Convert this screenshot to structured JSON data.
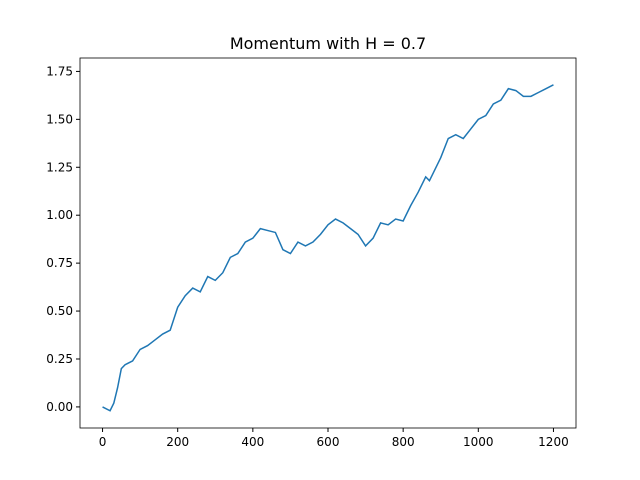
{
  "chart_data": {
    "type": "line",
    "title": "Momentum with H = 0.7",
    "x": [
      0,
      20,
      30,
      40,
      50,
      60,
      80,
      100,
      120,
      140,
      160,
      180,
      200,
      220,
      240,
      260,
      280,
      300,
      320,
      340,
      360,
      380,
      400,
      420,
      440,
      460,
      480,
      500,
      520,
      540,
      560,
      580,
      600,
      620,
      640,
      660,
      680,
      700,
      720,
      740,
      760,
      780,
      800,
      820,
      840,
      860,
      870,
      880,
      900,
      920,
      940,
      960,
      980,
      1000,
      1020,
      1040,
      1060,
      1080,
      1100,
      1120,
      1140,
      1160,
      1180,
      1200
    ],
    "series": [
      {
        "color": "#1f77b4",
        "values": [
          0.0,
          -0.02,
          0.02,
          0.1,
          0.2,
          0.22,
          0.24,
          0.3,
          0.32,
          0.35,
          0.38,
          0.4,
          0.52,
          0.58,
          0.62,
          0.6,
          0.68,
          0.66,
          0.7,
          0.78,
          0.8,
          0.86,
          0.88,
          0.93,
          0.92,
          0.91,
          0.82,
          0.8,
          0.86,
          0.84,
          0.86,
          0.9,
          0.95,
          0.98,
          0.96,
          0.93,
          0.9,
          0.84,
          0.88,
          0.96,
          0.95,
          0.98,
          0.97,
          1.05,
          1.12,
          1.2,
          1.18,
          1.22,
          1.3,
          1.4,
          1.42,
          1.4,
          1.45,
          1.5,
          1.52,
          1.58,
          1.6,
          1.66,
          1.65,
          1.62,
          1.62,
          1.64,
          1.66,
          1.68
        ]
      }
    ],
    "xlim": [
      -60,
      1260
    ],
    "xticks": [
      0,
      200,
      400,
      600,
      800,
      1000,
      1200
    ],
    "ylim": [
      -0.11,
      1.82
    ],
    "yticks": [
      {
        "value": 0,
        "label": "0.00"
      },
      {
        "value": 0.25,
        "label": "0.25"
      },
      {
        "value": 0.5,
        "label": "0.50"
      },
      {
        "value": 0.75,
        "label": "0.75"
      },
      {
        "value": 1,
        "label": "1.00"
      },
      {
        "value": 1.25,
        "label": "1.25"
      },
      {
        "value": 1.5,
        "label": "1.50"
      },
      {
        "value": 1.75,
        "label": "1.75"
      }
    ]
  }
}
